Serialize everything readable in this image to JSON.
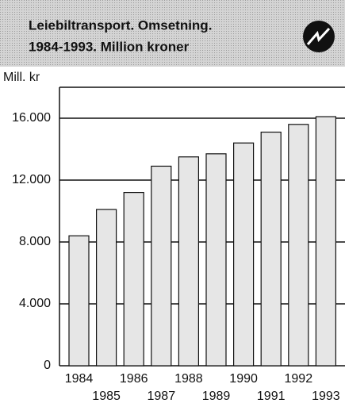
{
  "chart_data": {
    "type": "bar",
    "title": [
      "Leiebiltransport. Omsetning.",
      "1984-1993. Million kroner"
    ],
    "y_axis_label": "Mill. kr",
    "categories": [
      "1984",
      "1985",
      "1986",
      "1987",
      "1988",
      "1989",
      "1990",
      "1991",
      "1992",
      "1993"
    ],
    "values": [
      8400,
      10100,
      11200,
      12900,
      13500,
      13700,
      14400,
      15100,
      15600,
      16100
    ],
    "color": "#e6e6e6",
    "ylim": [
      0,
      18000
    ],
    "yticks": [
      0,
      {
        "value": 4000,
        "label": "4.000"
      },
      {
        "value": 8000,
        "label": "8.000"
      },
      {
        "value": 12000,
        "label": "12.000"
      },
      {
        "value": 16000,
        "label": "16.000"
      }
    ],
    "grid": true
  }
}
